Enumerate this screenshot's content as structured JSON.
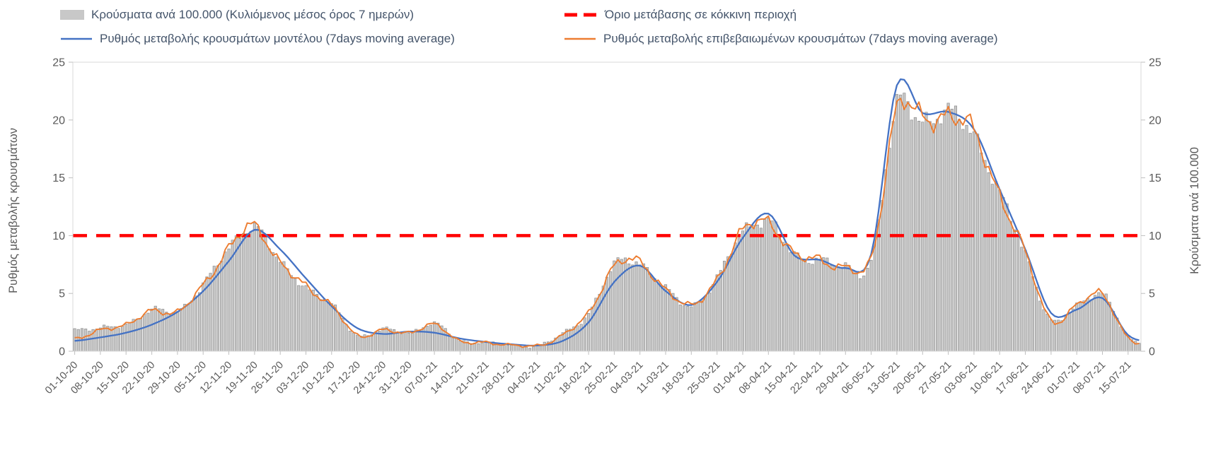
{
  "legend": {
    "bars_label": "Κρούσματα ανά 100.000 (Κυλιόμενος μέσος όρος 7 ημερών)",
    "threshold_label": "Όριο μετάβασης σε κόκκινη περιοχή",
    "model_label": "Ρυθμός μεταβολής κρουσμάτων μοντέλου (7days moving average)",
    "confirmed_label": "Ρυθμός μεταβολής επιβεβαιωμένων κρουσμάτων (7days moving average)"
  },
  "colors": {
    "bar_fill": "#C8C8C8",
    "bar_stroke": "#8C8C8C",
    "threshold_red": "#FF0000",
    "model_blue": "#4472C4",
    "confirmed_orange": "#ED7D31",
    "axis_text": "#595959",
    "legend_text": "#44546A",
    "axis_line": "#D9D9D9",
    "tick_line": "#BFBFBF"
  },
  "chart_data": {
    "type": "combo",
    "legend_position": "top",
    "grid": "none",
    "x_resolution": "daily bars/lines; x tick labels weekly; series values below are weekly readings at each labeled tick",
    "categories": [
      "01-10-20",
      "08-10-20",
      "15-10-20",
      "22-10-20",
      "29-10-20",
      "05-11-20",
      "12-11-20",
      "19-11-20",
      "26-11-20",
      "03-12-20",
      "10-12-20",
      "17-12-20",
      "24-12-20",
      "31-12-20",
      "07-01-21",
      "14-01-21",
      "21-01-21",
      "28-01-21",
      "04-02-21",
      "11-02-21",
      "18-02-21",
      "25-02-21",
      "04-03-21",
      "11-03-21",
      "18-03-21",
      "25-03-21",
      "01-04-21",
      "08-04-21",
      "15-04-21",
      "22-04-21",
      "29-04-21",
      "06-05-21",
      "13-05-21",
      "20-05-21",
      "27-05-21",
      "03-06-21",
      "10-06-21",
      "17-06-21",
      "24-06-21",
      "01-07-21",
      "08-07-21",
      "15-07-21"
    ],
    "left_axis": {
      "label": "Ρυθμός μεταβολής κρουσμάτων",
      "min": 0,
      "max": 25,
      "ticks": [
        0,
        5,
        10,
        15,
        20,
        25
      ]
    },
    "right_axis": {
      "label": "Κρούσματα ανά 100.000",
      "min": 0,
      "max": 25,
      "ticks": [
        0,
        5,
        10,
        15,
        20,
        25
      ]
    },
    "threshold": {
      "name": "Όριο μετάβασης σε κόκκινη περιοχή",
      "value": 10,
      "style": "dashed",
      "axis": "left"
    },
    "series": [
      {
        "key": "cases_per_100k",
        "name": "Κρούσματα ανά 100.000 (Κυλιόμενος μέσος όρος 7 ημερών)",
        "type": "bar",
        "axis": "right",
        "weekly_values": [
          1.9,
          2.0,
          2.3,
          3.6,
          3.4,
          5.8,
          8.8,
          10.9,
          7.6,
          5.6,
          4.0,
          1.4,
          1.9,
          1.6,
          2.4,
          0.9,
          0.8,
          0.5,
          0.5,
          1.5,
          3.3,
          7.4,
          7.6,
          5.4,
          3.9,
          6.3,
          10.3,
          11.3,
          8.3,
          8.0,
          7.2,
          8.0,
          21.0,
          20.0,
          20.5,
          18.8,
          13.6,
          8.4,
          2.7,
          3.9,
          5.0,
          1.2
        ]
      },
      {
        "key": "model_rate",
        "name": "Ρυθμός μεταβολής κρουσμάτων μοντέλου (7days moving average)",
        "type": "line",
        "axis": "left",
        "weekly_values": [
          0.9,
          1.2,
          1.6,
          2.3,
          3.4,
          5.2,
          7.8,
          10.5,
          8.8,
          6.3,
          3.9,
          2.0,
          1.5,
          1.7,
          1.6,
          1.1,
          0.8,
          0.6,
          0.5,
          0.9,
          2.5,
          6.0,
          7.4,
          5.2,
          4.0,
          6.0,
          9.8,
          11.9,
          8.3,
          7.9,
          7.2,
          8.4,
          23.0,
          20.6,
          20.7,
          19.2,
          14.0,
          8.8,
          3.3,
          3.6,
          4.6,
          1.4
        ]
      },
      {
        "key": "confirmed_rate",
        "name": "Ρυθμός μεταβολής επιβεβαιωμένων κρουσμάτων (7days moving average)",
        "type": "line",
        "axis": "left",
        "weekly_values": [
          1.0,
          1.9,
          2.2,
          3.6,
          3.3,
          5.8,
          8.8,
          10.9,
          7.6,
          5.6,
          4.0,
          1.3,
          1.9,
          1.5,
          2.4,
          0.8,
          0.8,
          0.5,
          0.5,
          1.4,
          3.3,
          7.4,
          7.6,
          5.4,
          3.9,
          6.3,
          10.3,
          11.3,
          8.3,
          8.0,
          7.2,
          8.0,
          21.0,
          20.0,
          20.5,
          18.8,
          13.6,
          8.4,
          2.7,
          3.9,
          5.0,
          1.1
        ]
      }
    ]
  }
}
